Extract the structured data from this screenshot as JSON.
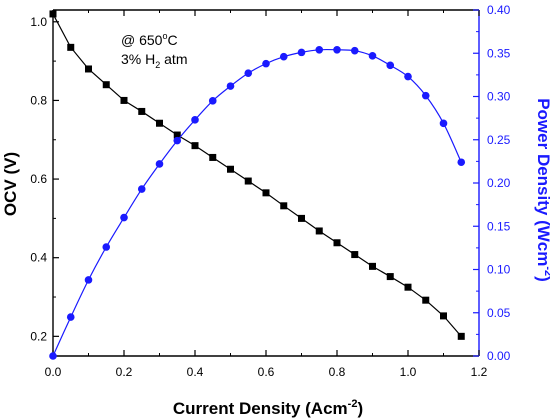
{
  "chart_data": {
    "type": "line",
    "annotations": {
      "line1_prefix": "@ 650",
      "line1_deg": "o",
      "line1_suffix": "C",
      "line2_prefix": "3% H",
      "line2_sub": "2",
      "line2_suffix": " atm"
    },
    "xlabel": {
      "text": "Current Density (Acm",
      "sup": "-2",
      "close": ")"
    },
    "ylabel_left": "OCV (V)",
    "ylabel_right": {
      "text": "Power Density (Wcm",
      "sup": "-2",
      "close": ")"
    },
    "xlim": [
      0.0,
      1.2
    ],
    "ylim_left": [
      0.15,
      1.03
    ],
    "ylim_right": [
      0.0,
      0.4
    ],
    "x_ticks": [
      "0.0",
      "0.2",
      "0.4",
      "0.6",
      "0.8",
      "1.0",
      "1.2"
    ],
    "y_left_ticks": [
      "0.2",
      "0.4",
      "0.6",
      "0.8",
      "1.0"
    ],
    "y_right_ticks": [
      "0.00",
      "0.05",
      "0.10",
      "0.15",
      "0.20",
      "0.25",
      "0.30",
      "0.35",
      "0.40"
    ],
    "colors": {
      "ocv": "#000000",
      "power": "#1a1aff"
    },
    "grid": false,
    "series": [
      {
        "axis": "left",
        "marker": "square",
        "x": [
          0.0,
          0.05,
          0.1,
          0.15,
          0.2,
          0.25,
          0.3,
          0.35,
          0.4,
          0.45,
          0.5,
          0.55,
          0.6,
          0.65,
          0.7,
          0.75,
          0.8,
          0.85,
          0.9,
          0.95,
          1.0,
          1.05,
          1.1,
          1.15
        ],
        "y": [
          1.02,
          0.935,
          0.88,
          0.84,
          0.8,
          0.772,
          0.742,
          0.712,
          0.685,
          0.655,
          0.625,
          0.595,
          0.565,
          0.532,
          0.5,
          0.468,
          0.438,
          0.408,
          0.378,
          0.352,
          0.325,
          0.292,
          0.252,
          0.2
        ]
      },
      {
        "axis": "right",
        "marker": "circle",
        "x": [
          0.0,
          0.05,
          0.1,
          0.15,
          0.2,
          0.25,
          0.3,
          0.35,
          0.4,
          0.45,
          0.5,
          0.55,
          0.6,
          0.65,
          0.7,
          0.75,
          0.8,
          0.85,
          0.9,
          0.95,
          1.0,
          1.05,
          1.1,
          1.15
        ],
        "y": [
          0.0,
          0.045,
          0.088,
          0.126,
          0.16,
          0.193,
          0.222,
          0.249,
          0.273,
          0.295,
          0.312,
          0.327,
          0.338,
          0.346,
          0.351,
          0.354,
          0.354,
          0.353,
          0.347,
          0.336,
          0.323,
          0.301,
          0.269,
          0.224
        ]
      }
    ]
  }
}
